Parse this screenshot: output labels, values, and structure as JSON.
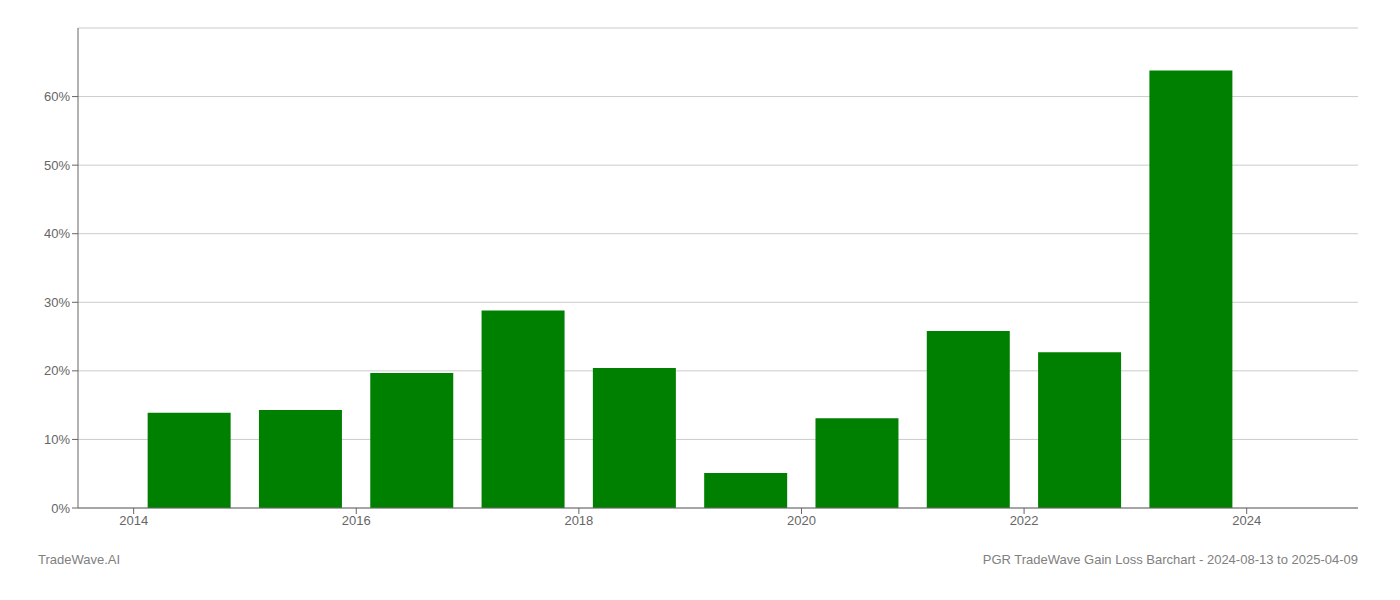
{
  "chart_data": {
    "type": "bar",
    "x": [
      2014,
      2015,
      2016,
      2017,
      2018,
      2019,
      2020,
      2021,
      2022,
      2023
    ],
    "values": [
      0.139,
      0.143,
      0.197,
      0.288,
      0.204,
      0.051,
      0.131,
      0.258,
      0.227,
      0.638
    ],
    "color": "#008000",
    "xlim": [
      2013.0,
      2024.5
    ],
    "xticks": [
      {
        "value": 2013.5,
        "label": "2014"
      },
      {
        "value": 2015.5,
        "label": "2016"
      },
      {
        "value": 2017.5,
        "label": "2018"
      },
      {
        "value": 2019.5,
        "label": "2020"
      },
      {
        "value": 2021.5,
        "label": "2022"
      },
      {
        "value": 2023.5,
        "label": "2024"
      }
    ],
    "ylim": [
      0,
      0.7
    ],
    "yticks": [
      {
        "value": 0.0,
        "label": "0%"
      },
      {
        "value": 0.1,
        "label": "10%"
      },
      {
        "value": 0.2,
        "label": "20%"
      },
      {
        "value": 0.3,
        "label": "30%"
      },
      {
        "value": 0.4,
        "label": "40%"
      },
      {
        "value": 0.5,
        "label": "50%"
      },
      {
        "value": 0.6,
        "label": "60%"
      }
    ],
    "grid": true,
    "annotations": [
      "TradeWave.AI",
      "PGR TradeWave Gain Loss Barchart - 2024-08-13 to 2025-04-09"
    ]
  }
}
